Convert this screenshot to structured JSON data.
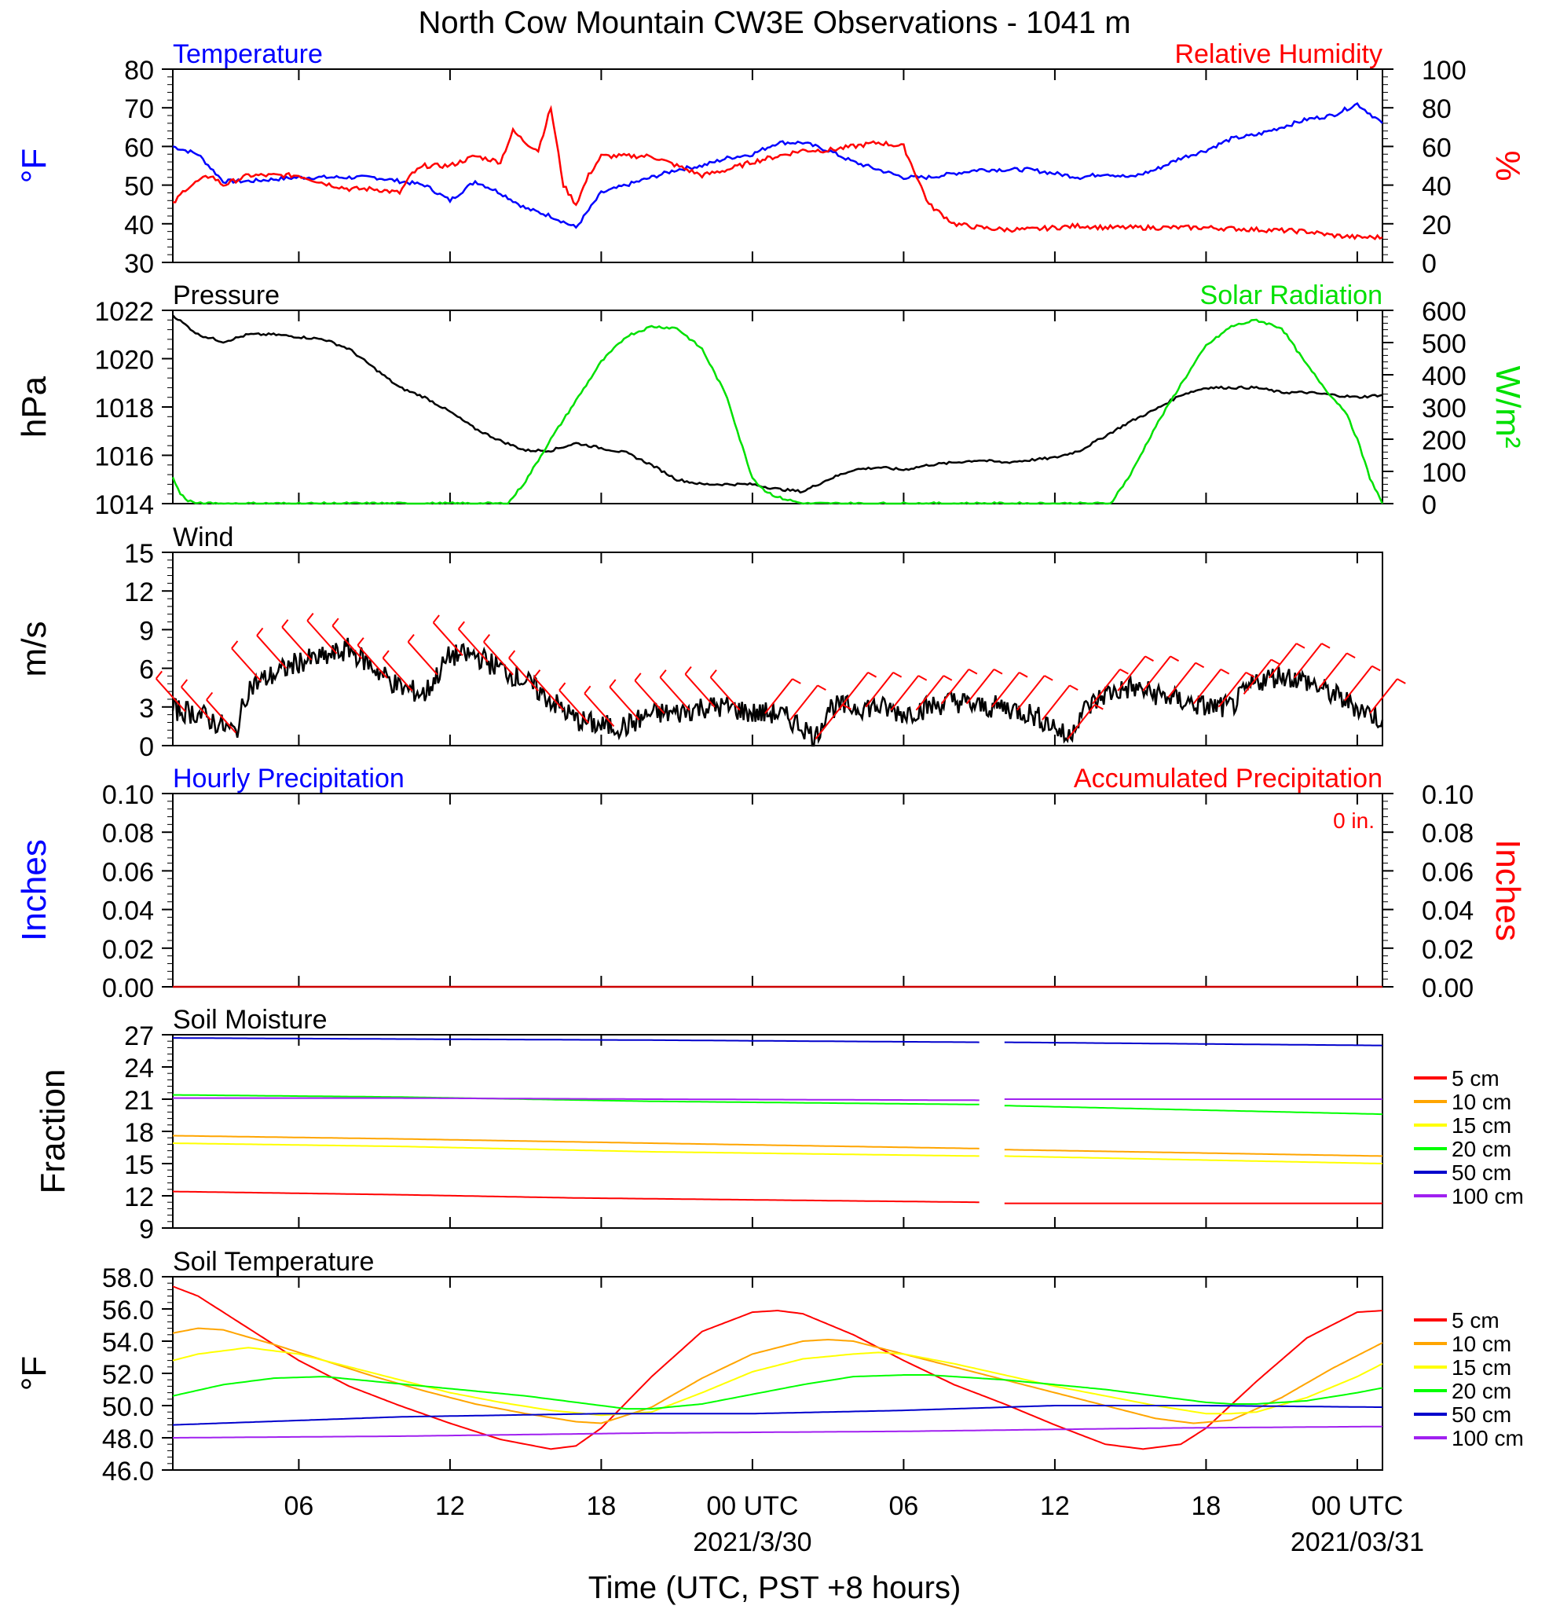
{
  "title": "North Cow Mountain CW3E Observations - 1041 m",
  "xaxis": {
    "label": "Time (UTC, PST +8 hours)",
    "ticks": [
      "06",
      "12",
      "18",
      "00 UTC",
      "06",
      "12",
      "18",
      "00 UTC"
    ],
    "tick_hours": [
      6,
      12,
      18,
      24,
      30,
      36,
      42,
      48
    ],
    "dates": [
      "2021/3/30",
      "2021/03/31"
    ],
    "date_hours": [
      24,
      48
    ],
    "range_hours": [
      1,
      49
    ]
  },
  "colors": {
    "blue": "#0000ff",
    "red": "#ff0000",
    "green": "#00e000",
    "black": "#000000",
    "orange": "#ffa500",
    "yellow": "#ffff00",
    "bright_green": "#00ff00",
    "dark_blue": "#0000cc",
    "purple": "#a020f0"
  },
  "chart_data": [
    {
      "type": "line",
      "panel": "temp_rh",
      "left_title": "Temperature",
      "right_title": "Relative Humidity",
      "ylabel_left": "°F",
      "ylabel_right": "%",
      "ylim_left": [
        30,
        80
      ],
      "ylim_right": [
        0,
        100
      ],
      "yticks_left": [
        "30",
        "40",
        "50",
        "60",
        "70",
        "80"
      ],
      "yticks_right": [
        "0",
        "20",
        "40",
        "60",
        "80",
        "100"
      ],
      "series": [
        {
          "name": "Temperature",
          "axis": "left",
          "color": "#0000ff",
          "x": [
            1,
            2,
            3,
            4,
            6,
            8,
            9,
            10,
            11,
            12,
            13,
            14,
            15,
            16,
            17,
            18,
            19,
            20,
            21,
            22,
            23,
            24,
            25,
            26,
            27,
            28,
            29,
            30,
            31,
            32,
            33,
            34,
            35,
            36,
            37,
            38,
            39,
            40,
            41,
            42,
            43,
            44,
            45,
            46,
            47,
            48,
            49
          ],
          "y": [
            60,
            58,
            51,
            51,
            52,
            52,
            52,
            51,
            50,
            46,
            51,
            48,
            44,
            42,
            39,
            48,
            50,
            52,
            54,
            55,
            57,
            58,
            61,
            61,
            59,
            56,
            54,
            52,
            52,
            53,
            54,
            54,
            54,
            53,
            52,
            53,
            52,
            54,
            57,
            59,
            62,
            63,
            65,
            67,
            68,
            71,
            66
          ]
        },
        {
          "name": "Relative Humidity",
          "axis": "right",
          "color": "#ff0000",
          "x": [
            1,
            1.5,
            2,
            2.5,
            3,
            4,
            5,
            6,
            7,
            8,
            9,
            10,
            10.5,
            11,
            12,
            13,
            14,
            14.5,
            15,
            15.5,
            16,
            16.5,
            17,
            17.5,
            18,
            19,
            20,
            21,
            22,
            23,
            24,
            25,
            26,
            27,
            28,
            29,
            30,
            31,
            32,
            33,
            34,
            35,
            36,
            37,
            38,
            40,
            42,
            44,
            46,
            47,
            48,
            49
          ],
          "y": [
            30,
            38,
            42,
            45,
            40,
            45,
            45,
            45,
            41,
            38,
            38,
            36,
            46,
            50,
            50,
            55,
            52,
            68,
            62,
            58,
            80,
            40,
            30,
            45,
            55,
            55,
            55,
            50,
            45,
            48,
            52,
            55,
            58,
            58,
            60,
            62,
            60,
            30,
            20,
            18,
            17,
            17,
            18,
            19,
            18,
            18,
            18,
            17,
            16,
            14,
            13,
            13
          ]
        }
      ]
    },
    {
      "type": "line",
      "panel": "pressure_solar",
      "left_title": "Pressure",
      "right_title": "Solar Radiation",
      "ylabel_left": "hPa",
      "ylabel_right": "W/m²",
      "ylim_left": [
        1014,
        1022
      ],
      "ylim_right": [
        0,
        600
      ],
      "yticks_left": [
        "1014",
        "1016",
        "1018",
        "1020",
        "1022"
      ],
      "yticks_right": [
        "0",
        "100",
        "200",
        "300",
        "400",
        "500",
        "600"
      ],
      "series": [
        {
          "name": "Pressure",
          "axis": "left",
          "color": "#000000",
          "x": [
            1,
            2,
            3,
            4,
            5,
            6,
            7,
            8,
            9,
            10,
            11,
            12,
            13,
            14,
            15,
            16,
            17,
            18,
            19,
            20,
            21,
            22,
            23,
            24,
            25,
            26,
            27,
            28,
            29,
            30,
            31,
            32,
            33,
            34,
            35,
            36,
            37,
            38,
            39,
            40,
            41,
            42,
            43,
            44,
            45,
            46,
            47,
            48,
            49
          ],
          "y": [
            1021.8,
            1021.0,
            1020.7,
            1021.0,
            1021.0,
            1020.9,
            1020.8,
            1020.4,
            1019.6,
            1018.8,
            1018.4,
            1017.8,
            1017.1,
            1016.6,
            1016.2,
            1016.2,
            1016.5,
            1016.3,
            1016.1,
            1015.6,
            1015.0,
            1014.8,
            1014.8,
            1014.8,
            1014.6,
            1014.5,
            1015.0,
            1015.4,
            1015.5,
            1015.4,
            1015.6,
            1015.7,
            1015.8,
            1015.7,
            1015.8,
            1015.9,
            1016.2,
            1016.8,
            1017.4,
            1017.9,
            1018.5,
            1018.8,
            1018.8,
            1018.8,
            1018.6,
            1018.6,
            1018.5,
            1018.4,
            1018.5
          ]
        },
        {
          "name": "Solar Radiation",
          "axis": "right",
          "color": "#00e000",
          "x": [
            1,
            1.3,
            1.6,
            2,
            14.3,
            15,
            16,
            17,
            18,
            19,
            20,
            21,
            22,
            23,
            23.5,
            24,
            24.5,
            25,
            25.5,
            26,
            38.2,
            39,
            40,
            41,
            42,
            43,
            44,
            45,
            46,
            47,
            47.5,
            48,
            48.5,
            49
          ],
          "y": [
            80,
            30,
            10,
            0,
            0,
            70,
            200,
            320,
            440,
            520,
            550,
            545,
            480,
            330,
            200,
            80,
            40,
            20,
            10,
            0,
            0,
            90,
            240,
            370,
            490,
            550,
            570,
            545,
            430,
            330,
            290,
            200,
            80,
            0
          ]
        }
      ]
    },
    {
      "type": "line",
      "panel": "wind",
      "left_title": "Wind",
      "ylabel_left": "m/s",
      "ylim_left": [
        0,
        15
      ],
      "yticks_left": [
        "0",
        "3",
        "6",
        "9",
        "12",
        "15"
      ],
      "series": [
        {
          "name": "Wind",
          "axis": "left",
          "color": "#000000",
          "x": [
            1,
            2,
            3,
            3.5,
            4,
            5,
            6,
            7,
            8,
            9,
            10,
            11,
            12,
            13,
            14,
            15,
            16,
            17,
            18,
            19,
            20,
            21,
            22,
            23,
            24,
            25,
            26,
            26.5,
            27,
            28,
            29,
            30,
            31,
            32,
            33,
            34,
            35,
            36,
            36.5,
            37,
            38,
            39,
            40,
            41,
            42,
            43,
            44,
            45,
            46,
            47,
            48,
            49
          ],
          "y": [
            2.8,
            2.5,
            1.5,
            1.0,
            4.5,
            5.5,
            6.5,
            6.8,
            7.5,
            6.0,
            4.5,
            4.0,
            7.0,
            7.0,
            6.0,
            5.0,
            3.5,
            2.0,
            1.5,
            1.5,
            2.5,
            2.5,
            3.0,
            3.0,
            2.5,
            2.5,
            1.5,
            0.5,
            3.0,
            3.0,
            3.0,
            2.5,
            3.0,
            3.5,
            3.0,
            3.0,
            2.5,
            1.5,
            0.5,
            2.5,
            4.0,
            4.5,
            4.0,
            3.5,
            3.0,
            3.0,
            5.0,
            5.5,
            5.0,
            4.0,
            3.0,
            2.0
          ]
        }
      ],
      "barb_color": "#ff0000"
    },
    {
      "type": "line",
      "panel": "precip",
      "left_title": "Hourly Precipitation",
      "right_title": "Accumulated Precipitation",
      "annotation": "0 in.",
      "ylabel_left": "Inches",
      "ylabel_right": "Inches",
      "ylim_left": [
        0,
        0.1
      ],
      "ylim_right": [
        0,
        0.1
      ],
      "yticks_left": [
        "0.00",
        "0.02",
        "0.04",
        "0.06",
        "0.08",
        "0.10"
      ],
      "yticks_right": [
        "0.00",
        "0.02",
        "0.04",
        "0.06",
        "0.08",
        "0.10"
      ],
      "series": [
        {
          "name": "Accumulated Precipitation",
          "axis": "right",
          "color": "#cc0000",
          "x": [
            1,
            49
          ],
          "y": [
            0,
            0
          ]
        }
      ]
    },
    {
      "type": "line",
      "panel": "soil_moisture",
      "left_title": "Soil Moisture",
      "ylabel_left": "Fraction",
      "ylim_left": [
        9,
        27
      ],
      "yticks_left": [
        "9",
        "12",
        "15",
        "18",
        "21",
        "24",
        "27"
      ],
      "gap_hours": [
        33,
        34
      ],
      "legend": [
        "5 cm",
        "10 cm",
        "15 cm",
        "20 cm",
        "50 cm",
        "100 cm"
      ],
      "series": [
        {
          "name": "5 cm",
          "color": "#ff0000",
          "x": [
            1,
            10,
            17,
            33,
            34,
            49
          ],
          "y": [
            12.4,
            12.1,
            11.8,
            11.4,
            11.3,
            11.3
          ]
        },
        {
          "name": "10 cm",
          "color": "#ffa500",
          "x": [
            1,
            10,
            20,
            33,
            34,
            49
          ],
          "y": [
            17.6,
            17.3,
            16.9,
            16.4,
            16.3,
            15.7
          ]
        },
        {
          "name": "15 cm",
          "color": "#ffff00",
          "x": [
            1,
            10,
            20,
            33,
            34,
            49
          ],
          "y": [
            16.9,
            16.6,
            16.1,
            15.7,
            15.7,
            15.0
          ]
        },
        {
          "name": "20 cm",
          "color": "#00ff00",
          "x": [
            1,
            10,
            20,
            33,
            34,
            49
          ],
          "y": [
            21.4,
            21.2,
            20.8,
            20.5,
            20.4,
            19.6
          ]
        },
        {
          "name": "50 cm",
          "color": "#0000cc",
          "x": [
            1,
            10,
            20,
            33,
            34,
            49
          ],
          "y": [
            26.7,
            26.6,
            26.5,
            26.3,
            26.3,
            26.0
          ]
        },
        {
          "name": "100 cm",
          "color": "#a020f0",
          "x": [
            1,
            10,
            20,
            33,
            34,
            49
          ],
          "y": [
            21.1,
            21.1,
            21.0,
            20.9,
            21.0,
            21.0
          ]
        }
      ]
    },
    {
      "type": "line",
      "panel": "soil_temperature",
      "left_title": "Soil Temperature",
      "ylabel_left": "°F",
      "ylim_left": [
        46,
        58
      ],
      "yticks_left": [
        "46.0",
        "48.0",
        "50.0",
        "52.0",
        "54.0",
        "56.0",
        "58.0"
      ],
      "legend": [
        "5 cm",
        "10 cm",
        "15 cm",
        "20 cm",
        "50 cm",
        "100 cm"
      ],
      "series": [
        {
          "name": "5 cm",
          "color": "#ff0000",
          "x": [
            1,
            2,
            4,
            6,
            8,
            10,
            12,
            14,
            16,
            17,
            18,
            20,
            22,
            24,
            25,
            26,
            28,
            30,
            32,
            34,
            36,
            38,
            39.5,
            41,
            42,
            44,
            46,
            48,
            49
          ],
          "y": [
            57.4,
            56.8,
            54.8,
            52.8,
            51.2,
            50.0,
            48.9,
            47.9,
            47.3,
            47.5,
            48.6,
            51.8,
            54.6,
            55.8,
            55.9,
            55.7,
            54.4,
            52.8,
            51.3,
            50.1,
            48.8,
            47.6,
            47.3,
            47.6,
            48.6,
            51.5,
            54.2,
            55.8,
            55.9
          ]
        },
        {
          "name": "10 cm",
          "color": "#ffa500",
          "x": [
            1,
            2,
            3,
            5,
            7,
            9,
            11,
            13,
            15,
            17,
            18,
            20,
            22,
            24,
            26,
            27,
            28,
            30,
            32,
            34,
            36,
            38,
            40,
            41.5,
            43,
            45,
            47,
            49
          ],
          "y": [
            54.5,
            54.8,
            54.7,
            53.8,
            52.8,
            51.8,
            50.9,
            50.1,
            49.5,
            49.0,
            48.9,
            49.9,
            51.7,
            53.2,
            54.0,
            54.1,
            54.0,
            53.2,
            52.4,
            51.6,
            50.8,
            50.0,
            49.2,
            48.9,
            49.1,
            50.5,
            52.3,
            53.9
          ]
        },
        {
          "name": "15 cm",
          "color": "#ffff00",
          "x": [
            1,
            2,
            4,
            6,
            8,
            10,
            12,
            14,
            16,
            18,
            20,
            22,
            24,
            26,
            28,
            29,
            30,
            32,
            34,
            36,
            38,
            40,
            42,
            43,
            44,
            46,
            48,
            49
          ],
          "y": [
            52.8,
            53.2,
            53.6,
            53.2,
            52.4,
            51.6,
            50.8,
            50.2,
            49.7,
            49.4,
            49.6,
            50.8,
            52.1,
            52.9,
            53.2,
            53.3,
            53.2,
            52.6,
            51.9,
            51.2,
            50.6,
            50.0,
            49.5,
            49.5,
            49.6,
            50.5,
            51.8,
            52.6
          ]
        },
        {
          "name": "20 cm",
          "color": "#00ff00",
          "x": [
            1,
            3,
            5,
            7,
            9,
            11,
            13,
            15,
            17,
            19,
            20,
            22,
            24,
            26,
            28,
            30,
            31,
            32,
            34,
            36,
            38,
            40,
            42,
            43,
            44,
            46,
            48,
            49
          ],
          "y": [
            50.6,
            51.3,
            51.7,
            51.8,
            51.5,
            51.2,
            50.9,
            50.6,
            50.2,
            49.8,
            49.8,
            50.1,
            50.7,
            51.3,
            51.8,
            51.9,
            51.9,
            51.8,
            51.6,
            51.3,
            51.0,
            50.6,
            50.2,
            50.1,
            50.1,
            50.3,
            50.8,
            51.1
          ]
        },
        {
          "name": "50 cm",
          "color": "#0000cc",
          "x": [
            1,
            10,
            18,
            24,
            30,
            36,
            42,
            49
          ],
          "y": [
            48.8,
            49.3,
            49.5,
            49.5,
            49.7,
            50.0,
            50.0,
            49.9
          ]
        },
        {
          "name": "100 cm",
          "color": "#a020f0",
          "x": [
            1,
            10,
            20,
            30,
            40,
            49
          ],
          "y": [
            48.0,
            48.1,
            48.3,
            48.4,
            48.6,
            48.7
          ]
        }
      ]
    }
  ]
}
